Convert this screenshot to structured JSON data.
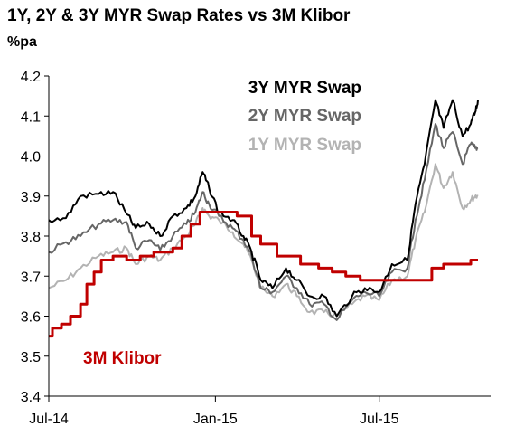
{
  "chart_data": {
    "type": "line",
    "title": "1Y, 2Y & 3Y MYR Swap Rates vs 3M Klibor",
    "ylabel": "%pa",
    "xlabel": "",
    "ylim": [
      3.4,
      4.2
    ],
    "yticks": [
      "3.4",
      "3.5",
      "3.6",
      "3.7",
      "3.8",
      "3.9",
      "4.0",
      "4.1",
      "4.2"
    ],
    "xlim": [
      "2014-07-01",
      "2015-11-01"
    ],
    "xticks": [
      {
        "date": "2014-07-01",
        "label": "Jul-14"
      },
      {
        "date": "2015-01-01",
        "label": "Jan-15"
      },
      {
        "date": "2015-07-01",
        "label": "Jul-15"
      }
    ],
    "grid": false,
    "legend_position": "top-right",
    "series": [
      {
        "name": "3Y MYR Swap",
        "color": "#000000",
        "points": [
          [
            "2014-07-01",
            3.84
          ],
          [
            "2014-07-20",
            3.845
          ],
          [
            "2014-08-05",
            3.9
          ],
          [
            "2014-08-25",
            3.905
          ],
          [
            "2014-09-10",
            3.91
          ],
          [
            "2014-09-25",
            3.855
          ],
          [
            "2014-10-05",
            3.82
          ],
          [
            "2014-10-20",
            3.83
          ],
          [
            "2014-11-01",
            3.8
          ],
          [
            "2014-11-15",
            3.85
          ],
          [
            "2014-11-30",
            3.87
          ],
          [
            "2014-12-10",
            3.9
          ],
          [
            "2014-12-18",
            3.96
          ],
          [
            "2014-12-25",
            3.92
          ],
          [
            "2015-01-05",
            3.86
          ],
          [
            "2015-01-20",
            3.84
          ],
          [
            "2015-02-01",
            3.8
          ],
          [
            "2015-02-10",
            3.76
          ],
          [
            "2015-02-20",
            3.69
          ],
          [
            "2015-03-05",
            3.67
          ],
          [
            "2015-03-20",
            3.72
          ],
          [
            "2015-04-01",
            3.69
          ],
          [
            "2015-04-15",
            3.65
          ],
          [
            "2015-05-01",
            3.65
          ],
          [
            "2015-05-15",
            3.6
          ],
          [
            "2015-06-01",
            3.65
          ],
          [
            "2015-06-15",
            3.67
          ],
          [
            "2015-07-01",
            3.66
          ],
          [
            "2015-07-15",
            3.73
          ],
          [
            "2015-08-01",
            3.74
          ],
          [
            "2015-08-10",
            3.88
          ],
          [
            "2015-08-20",
            3.98
          ],
          [
            "2015-09-01",
            4.14
          ],
          [
            "2015-09-10",
            4.07
          ],
          [
            "2015-09-20",
            4.14
          ],
          [
            "2015-10-01",
            4.05
          ],
          [
            "2015-10-10",
            4.08
          ],
          [
            "2015-10-15",
            4.11
          ],
          [
            "2015-10-18",
            4.14
          ]
        ]
      },
      {
        "name": "2Y MYR Swap",
        "color": "#666666",
        "points": [
          [
            "2014-07-01",
            3.76
          ],
          [
            "2014-07-20",
            3.785
          ],
          [
            "2014-08-05",
            3.8
          ],
          [
            "2014-08-25",
            3.83
          ],
          [
            "2014-09-10",
            3.84
          ],
          [
            "2014-09-25",
            3.835
          ],
          [
            "2014-10-05",
            3.77
          ],
          [
            "2014-10-20",
            3.79
          ],
          [
            "2014-11-01",
            3.765
          ],
          [
            "2014-11-15",
            3.8
          ],
          [
            "2014-11-30",
            3.83
          ],
          [
            "2014-12-10",
            3.86
          ],
          [
            "2014-12-18",
            3.91
          ],
          [
            "2014-12-25",
            3.88
          ],
          [
            "2015-01-05",
            3.85
          ],
          [
            "2015-01-20",
            3.82
          ],
          [
            "2015-02-01",
            3.79
          ],
          [
            "2015-02-10",
            3.75
          ],
          [
            "2015-02-20",
            3.67
          ],
          [
            "2015-03-05",
            3.66
          ],
          [
            "2015-03-20",
            3.7
          ],
          [
            "2015-04-01",
            3.67
          ],
          [
            "2015-04-15",
            3.63
          ],
          [
            "2015-05-01",
            3.63
          ],
          [
            "2015-05-15",
            3.59
          ],
          [
            "2015-06-01",
            3.64
          ],
          [
            "2015-06-15",
            3.66
          ],
          [
            "2015-07-01",
            3.65
          ],
          [
            "2015-07-15",
            3.71
          ],
          [
            "2015-08-01",
            3.72
          ],
          [
            "2015-08-10",
            3.84
          ],
          [
            "2015-08-20",
            3.94
          ],
          [
            "2015-09-01",
            4.08
          ],
          [
            "2015-09-10",
            4.02
          ],
          [
            "2015-09-20",
            4.06
          ],
          [
            "2015-10-01",
            3.98
          ],
          [
            "2015-10-10",
            4.03
          ],
          [
            "2015-10-15",
            4.02
          ],
          [
            "2015-10-18",
            4.02
          ]
        ]
      },
      {
        "name": "1Y MYR Swap",
        "color": "#b3b3b3",
        "points": [
          [
            "2014-07-01",
            3.67
          ],
          [
            "2014-07-20",
            3.69
          ],
          [
            "2014-08-05",
            3.72
          ],
          [
            "2014-08-25",
            3.75
          ],
          [
            "2014-09-10",
            3.76
          ],
          [
            "2014-09-25",
            3.77
          ],
          [
            "2014-10-05",
            3.73
          ],
          [
            "2014-10-20",
            3.75
          ],
          [
            "2014-11-01",
            3.74
          ],
          [
            "2014-11-15",
            3.77
          ],
          [
            "2014-11-30",
            3.8
          ],
          [
            "2014-12-10",
            3.83
          ],
          [
            "2014-12-18",
            3.87
          ],
          [
            "2014-12-25",
            3.85
          ],
          [
            "2015-01-05",
            3.84
          ],
          [
            "2015-01-20",
            3.81
          ],
          [
            "2015-02-01",
            3.78
          ],
          [
            "2015-02-10",
            3.74
          ],
          [
            "2015-02-20",
            3.67
          ],
          [
            "2015-03-05",
            3.65
          ],
          [
            "2015-03-20",
            3.68
          ],
          [
            "2015-04-01",
            3.65
          ],
          [
            "2015-04-15",
            3.61
          ],
          [
            "2015-05-01",
            3.61
          ],
          [
            "2015-05-15",
            3.6
          ],
          [
            "2015-06-01",
            3.63
          ],
          [
            "2015-06-15",
            3.65
          ],
          [
            "2015-07-01",
            3.64
          ],
          [
            "2015-07-15",
            3.69
          ],
          [
            "2015-08-01",
            3.7
          ],
          [
            "2015-08-10",
            3.79
          ],
          [
            "2015-08-20",
            3.86
          ],
          [
            "2015-09-01",
            3.98
          ],
          [
            "2015-09-10",
            3.92
          ],
          [
            "2015-09-20",
            3.96
          ],
          [
            "2015-10-01",
            3.87
          ],
          [
            "2015-10-10",
            3.89
          ],
          [
            "2015-10-15",
            3.9
          ],
          [
            "2015-10-18",
            3.9
          ]
        ]
      },
      {
        "name": "3M Klibor",
        "color": "#c00000",
        "points": [
          [
            "2014-07-01",
            3.55
          ],
          [
            "2014-07-05",
            3.57
          ],
          [
            "2014-07-15",
            3.58
          ],
          [
            "2014-07-25",
            3.6
          ],
          [
            "2014-08-05",
            3.63
          ],
          [
            "2014-08-12",
            3.68
          ],
          [
            "2014-08-20",
            3.71
          ],
          [
            "2014-08-28",
            3.74
          ],
          [
            "2014-09-10",
            3.75
          ],
          [
            "2014-09-25",
            3.74
          ],
          [
            "2014-10-10",
            3.75
          ],
          [
            "2014-10-25",
            3.76
          ],
          [
            "2014-11-05",
            3.76
          ],
          [
            "2014-11-15",
            3.77
          ],
          [
            "2014-11-25",
            3.8
          ],
          [
            "2014-12-05",
            3.83
          ],
          [
            "2014-12-15",
            3.86
          ],
          [
            "2015-01-01",
            3.86
          ],
          [
            "2015-01-20",
            3.86
          ],
          [
            "2015-01-25",
            3.85
          ],
          [
            "2015-02-05",
            3.85
          ],
          [
            "2015-02-10",
            3.8
          ],
          [
            "2015-02-20",
            3.78
          ],
          [
            "2015-03-01",
            3.78
          ],
          [
            "2015-03-10",
            3.75
          ],
          [
            "2015-03-25",
            3.75
          ],
          [
            "2015-04-05",
            3.73
          ],
          [
            "2015-04-25",
            3.72
          ],
          [
            "2015-05-10",
            3.71
          ],
          [
            "2015-05-25",
            3.7
          ],
          [
            "2015-06-05",
            3.7
          ],
          [
            "2015-06-10",
            3.69
          ],
          [
            "2015-07-01",
            3.69
          ],
          [
            "2015-08-01",
            3.69
          ],
          [
            "2015-08-20",
            3.69
          ],
          [
            "2015-08-28",
            3.72
          ],
          [
            "2015-09-10",
            3.73
          ],
          [
            "2015-10-01",
            3.73
          ],
          [
            "2015-10-10",
            3.74
          ],
          [
            "2015-10-18",
            3.74
          ]
        ]
      }
    ],
    "annotations": [
      {
        "text": "3M Klibor",
        "color": "#c00000"
      }
    ]
  }
}
